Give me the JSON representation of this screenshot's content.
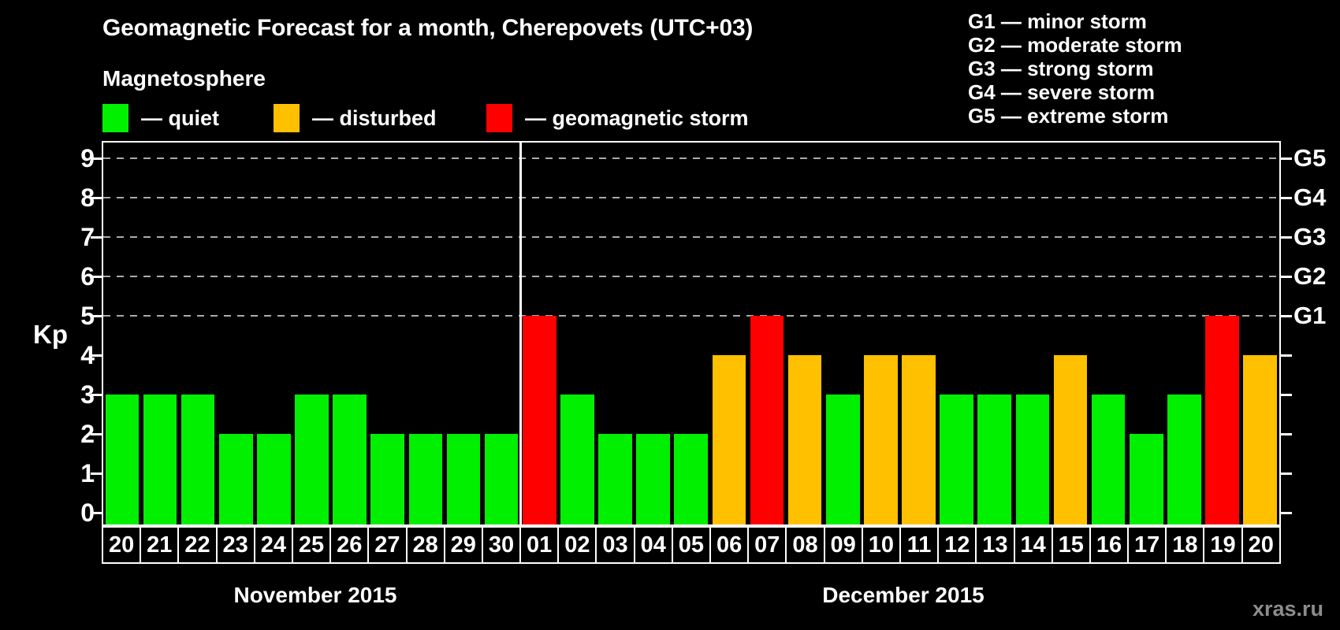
{
  "title": "Geomagnetic Forecast for a month, Cherepovets (UTC+03)",
  "subtitle": "Magnetosphere",
  "legend": {
    "items": [
      {
        "key": "quiet",
        "label": "— quiet"
      },
      {
        "key": "disturbed",
        "label": "— disturbed"
      },
      {
        "key": "storm",
        "label": "— geomagnetic storm"
      }
    ]
  },
  "g_scale_legend": {
    "items": [
      "G1 — minor storm",
      "G2 — moderate storm",
      "G3 — strong storm",
      "G4 — severe storm",
      "G5 — extreme storm"
    ]
  },
  "watermark": "xras.ru",
  "colors": {
    "quiet": "#00F000",
    "disturbed": "#FFC000",
    "storm": "#FF0000",
    "grid": "#ABABAB",
    "axis": "#FFFFFF",
    "background": "#000000"
  },
  "chart_data": {
    "type": "bar",
    "title": "Geomagnetic Forecast for a month, Cherepovets (UTC+03)",
    "ylabel": "Kp",
    "ylim": [
      0,
      9.7
    ],
    "yticks": [
      0,
      1,
      2,
      3,
      4,
      5,
      6,
      7,
      8,
      9
    ],
    "gridlines_kp": [
      5,
      6,
      7,
      8,
      9
    ],
    "grid_style": "dashed",
    "right_axis": [
      {
        "kp": 5,
        "label": "G1"
      },
      {
        "kp": 6,
        "label": "G2"
      },
      {
        "kp": 7,
        "label": "G3"
      },
      {
        "kp": 8,
        "label": "G4"
      },
      {
        "kp": 9,
        "label": "G5"
      }
    ],
    "legend_position": "top-left",
    "months": [
      {
        "label": "November 2015",
        "days": [
          {
            "day": "20",
            "kp": 3,
            "status": "quiet"
          },
          {
            "day": "21",
            "kp": 3,
            "status": "quiet"
          },
          {
            "day": "22",
            "kp": 3,
            "status": "quiet"
          },
          {
            "day": "23",
            "kp": 2,
            "status": "quiet"
          },
          {
            "day": "24",
            "kp": 2,
            "status": "quiet"
          },
          {
            "day": "25",
            "kp": 3,
            "status": "quiet"
          },
          {
            "day": "26",
            "kp": 3,
            "status": "quiet"
          },
          {
            "day": "27",
            "kp": 2,
            "status": "quiet"
          },
          {
            "day": "28",
            "kp": 2,
            "status": "quiet"
          },
          {
            "day": "29",
            "kp": 2,
            "status": "quiet"
          },
          {
            "day": "30",
            "kp": 2,
            "status": "quiet"
          }
        ]
      },
      {
        "label": "December 2015",
        "days": [
          {
            "day": "01",
            "kp": 5,
            "status": "storm"
          },
          {
            "day": "02",
            "kp": 3,
            "status": "quiet"
          },
          {
            "day": "03",
            "kp": 2,
            "status": "quiet"
          },
          {
            "day": "04",
            "kp": 2,
            "status": "quiet"
          },
          {
            "day": "05",
            "kp": 2,
            "status": "quiet"
          },
          {
            "day": "06",
            "kp": 4,
            "status": "disturbed"
          },
          {
            "day": "07",
            "kp": 5,
            "status": "storm"
          },
          {
            "day": "08",
            "kp": 4,
            "status": "disturbed"
          },
          {
            "day": "09",
            "kp": 3,
            "status": "quiet"
          },
          {
            "day": "10",
            "kp": 4,
            "status": "disturbed"
          },
          {
            "day": "11",
            "kp": 4,
            "status": "disturbed"
          },
          {
            "day": "12",
            "kp": 3,
            "status": "quiet"
          },
          {
            "day": "13",
            "kp": 3,
            "status": "quiet"
          },
          {
            "day": "14",
            "kp": 3,
            "status": "quiet"
          },
          {
            "day": "15",
            "kp": 4,
            "status": "disturbed"
          },
          {
            "day": "16",
            "kp": 3,
            "status": "quiet"
          },
          {
            "day": "17",
            "kp": 2,
            "status": "quiet"
          },
          {
            "day": "18",
            "kp": 3,
            "status": "quiet"
          },
          {
            "day": "19",
            "kp": 5,
            "status": "storm"
          },
          {
            "day": "20",
            "kp": 4,
            "status": "disturbed"
          }
        ]
      }
    ]
  }
}
